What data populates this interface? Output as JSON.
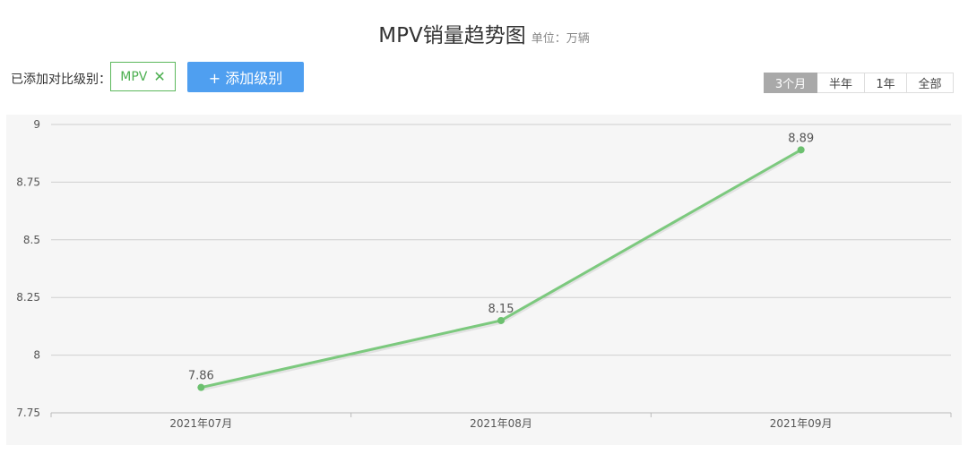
{
  "header": {
    "title": "MPV销量趋势图",
    "unit": "单位：万辆"
  },
  "compare": {
    "label": "已添加对比级别：",
    "tag": "MPV",
    "add_button": "+ 添加级别"
  },
  "ranges": [
    {
      "label": "3个月",
      "active": true
    },
    {
      "label": "半年",
      "active": false
    },
    {
      "label": "1年",
      "active": false
    },
    {
      "label": "全部",
      "active": false
    }
  ],
  "chart_data": {
    "type": "line",
    "categories": [
      "2021年07月",
      "2021年08月",
      "2021年09月"
    ],
    "series": [
      {
        "values": [
          7.86,
          8.15,
          8.89
        ],
        "color": "#7cc97e"
      }
    ],
    "ylim": [
      7.75,
      9
    ],
    "yticks": [
      "9",
      "8.75",
      "8.5",
      "8.25",
      "8",
      "7.75"
    ],
    "grid": true
  },
  "colors": {
    "line": "#7cc97e",
    "point": "#6cc06f",
    "accent": "#4f9ff0",
    "tag_border": "#5cb85c"
  }
}
